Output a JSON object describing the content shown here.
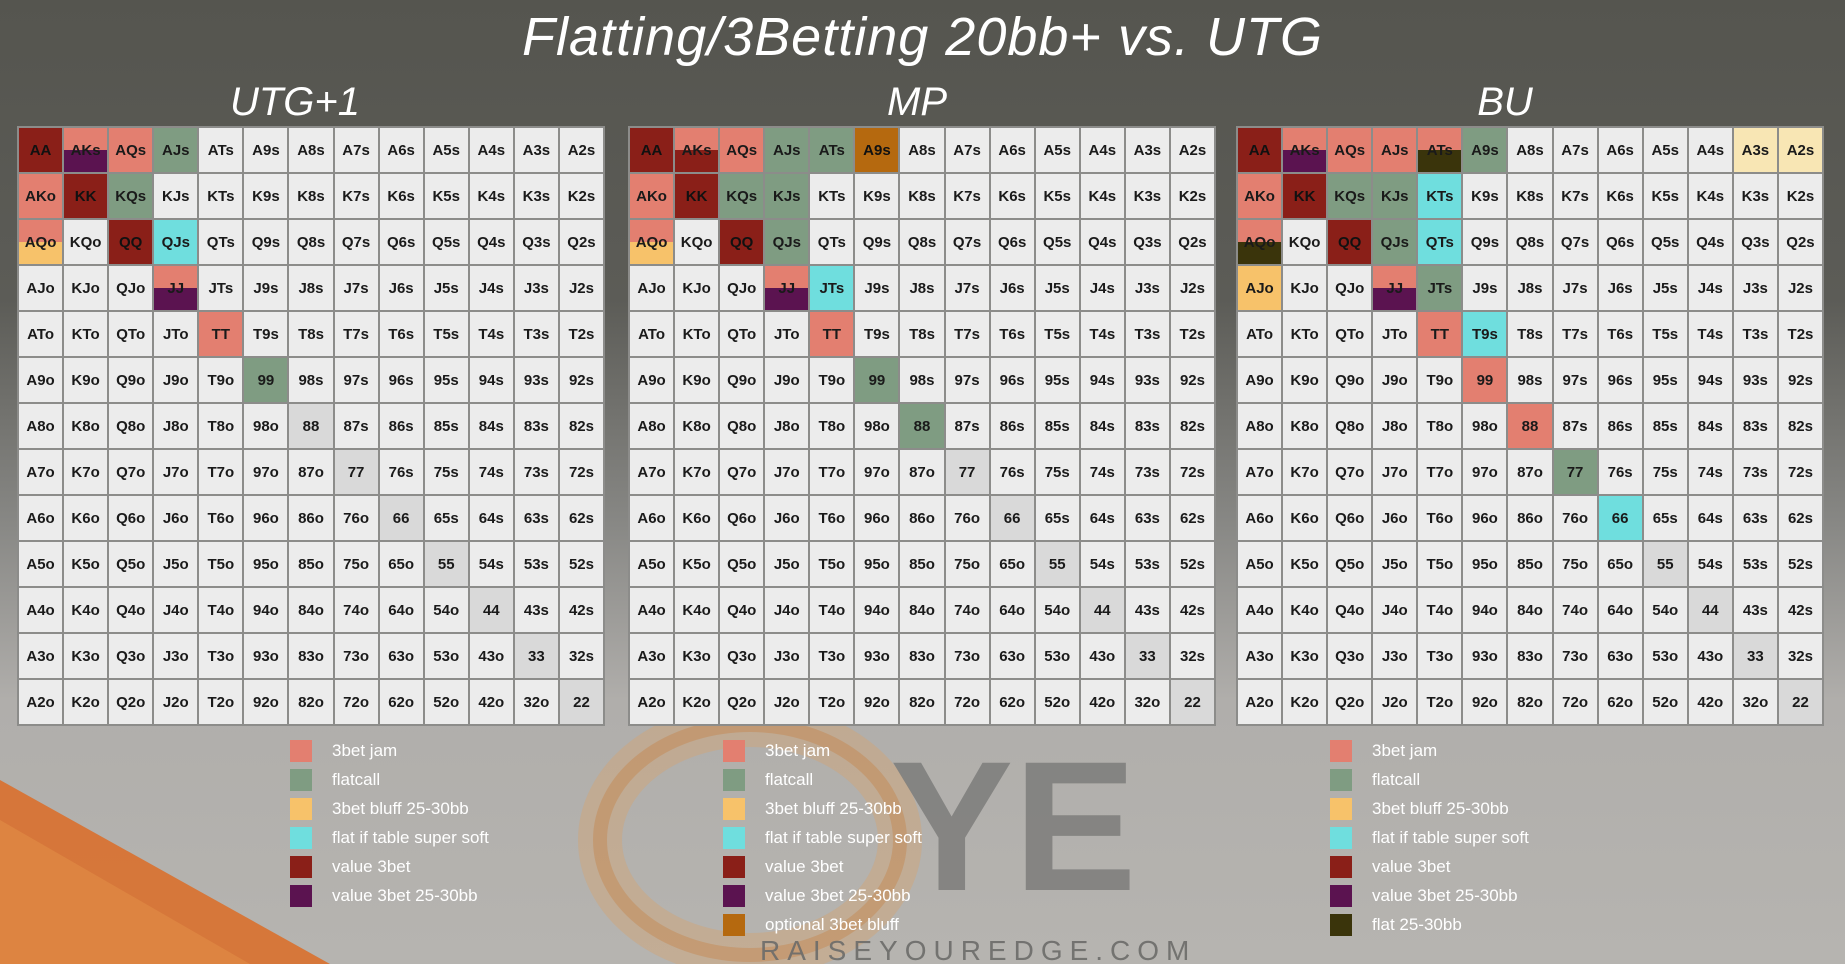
{
  "title": "Flatting/3Betting 20bb+ vs. UTG",
  "colors": {
    "jam": "#e37f70",
    "flat": "#7f9c82",
    "bluff": "#f7c26a",
    "soft": "#6fdede",
    "value": "#8a1f18",
    "value_bb": "#5b1350",
    "optional": "#b5690f",
    "flat_bb": "#3a340b",
    "light_bluff": "#f8e6b4"
  },
  "charts": [
    {
      "title": "UTG+1",
      "cells": {
        "AA": "value",
        "AKs": "jam|value_bb",
        "AQs": "jam",
        "AJs": "flat",
        "AKo": "jam",
        "KK": "value",
        "KQs": "flat",
        "AQo": "jam|bluff",
        "QQ": "value",
        "QJs": "soft",
        "JJ": "jam|value_bb",
        "TT": "jam",
        "99": "flat"
      },
      "legend": [
        {
          "color": "jam",
          "label": "3bet jam"
        },
        {
          "color": "flat",
          "label": "flatcall"
        },
        {
          "color": "bluff",
          "label": "3bet bluff  25-30bb"
        },
        {
          "color": "soft",
          "label": "flat if table super soft"
        },
        {
          "color": "value",
          "label": "value 3bet"
        },
        {
          "color": "value_bb",
          "label": "value 3bet  25-30bb"
        }
      ]
    },
    {
      "title": "MP",
      "cells": {
        "AA": "value",
        "AKs": "jam|value",
        "AQs": "jam",
        "AJs": "flat",
        "ATs": "flat",
        "A9s": "optional",
        "AKo": "jam",
        "KK": "value",
        "KQs": "flat",
        "KJs": "flat",
        "AQo": "jam|bluff",
        "QQ": "value",
        "QJs": "flat",
        "JJ": "jam|value_bb",
        "JTs": "soft",
        "TT": "jam",
        "99": "flat",
        "88": "flat"
      },
      "legend": [
        {
          "color": "jam",
          "label": "3bet jam"
        },
        {
          "color": "flat",
          "label": "flatcall"
        },
        {
          "color": "bluff",
          "label": "3bet bluff 25-30bb"
        },
        {
          "color": "soft",
          "label": "flat if table super soft"
        },
        {
          "color": "value",
          "label": "value 3bet"
        },
        {
          "color": "value_bb",
          "label": "value 3bet 25-30bb"
        },
        {
          "color": "optional",
          "label": "optional 3bet bluff"
        }
      ]
    },
    {
      "title": "BU",
      "cells": {
        "AA": "value",
        "AKs": "jam|value_bb",
        "AQs": "jam",
        "AJs": "jam",
        "ATs": "jam|flat_bb",
        "A9s": "flat",
        "A3s": "light_bluff",
        "A2s": "light_bluff",
        "AKo": "jam",
        "KK": "value",
        "KQs": "flat",
        "KJs": "flat",
        "KTs": "soft",
        "AQo": "jam|flat_bb",
        "QQ": "value",
        "QJs": "flat",
        "QTs": "soft",
        "AJo": "bluff",
        "JJ": "jam|value_bb",
        "JTs": "flat",
        "TT": "jam",
        "T9s": "soft",
        "99": "jam",
        "88": "jam",
        "77": "flat",
        "66": "soft"
      },
      "legend": [
        {
          "color": "jam",
          "label": "3bet jam"
        },
        {
          "color": "flat",
          "label": "flatcall"
        },
        {
          "color": "bluff",
          "label": "3bet bluff 25-30bb"
        },
        {
          "color": "soft",
          "label": "flat if table super soft"
        },
        {
          "color": "value",
          "label": "value 3bet"
        },
        {
          "color": "value_bb",
          "label": "value 3bet 25-30bb"
        },
        {
          "color": "flat_bb",
          "label": "flat 25-30bb"
        }
      ]
    }
  ],
  "logo": {
    "text": "RAISEYOUREDGE.COM",
    "letters": "YE"
  }
}
